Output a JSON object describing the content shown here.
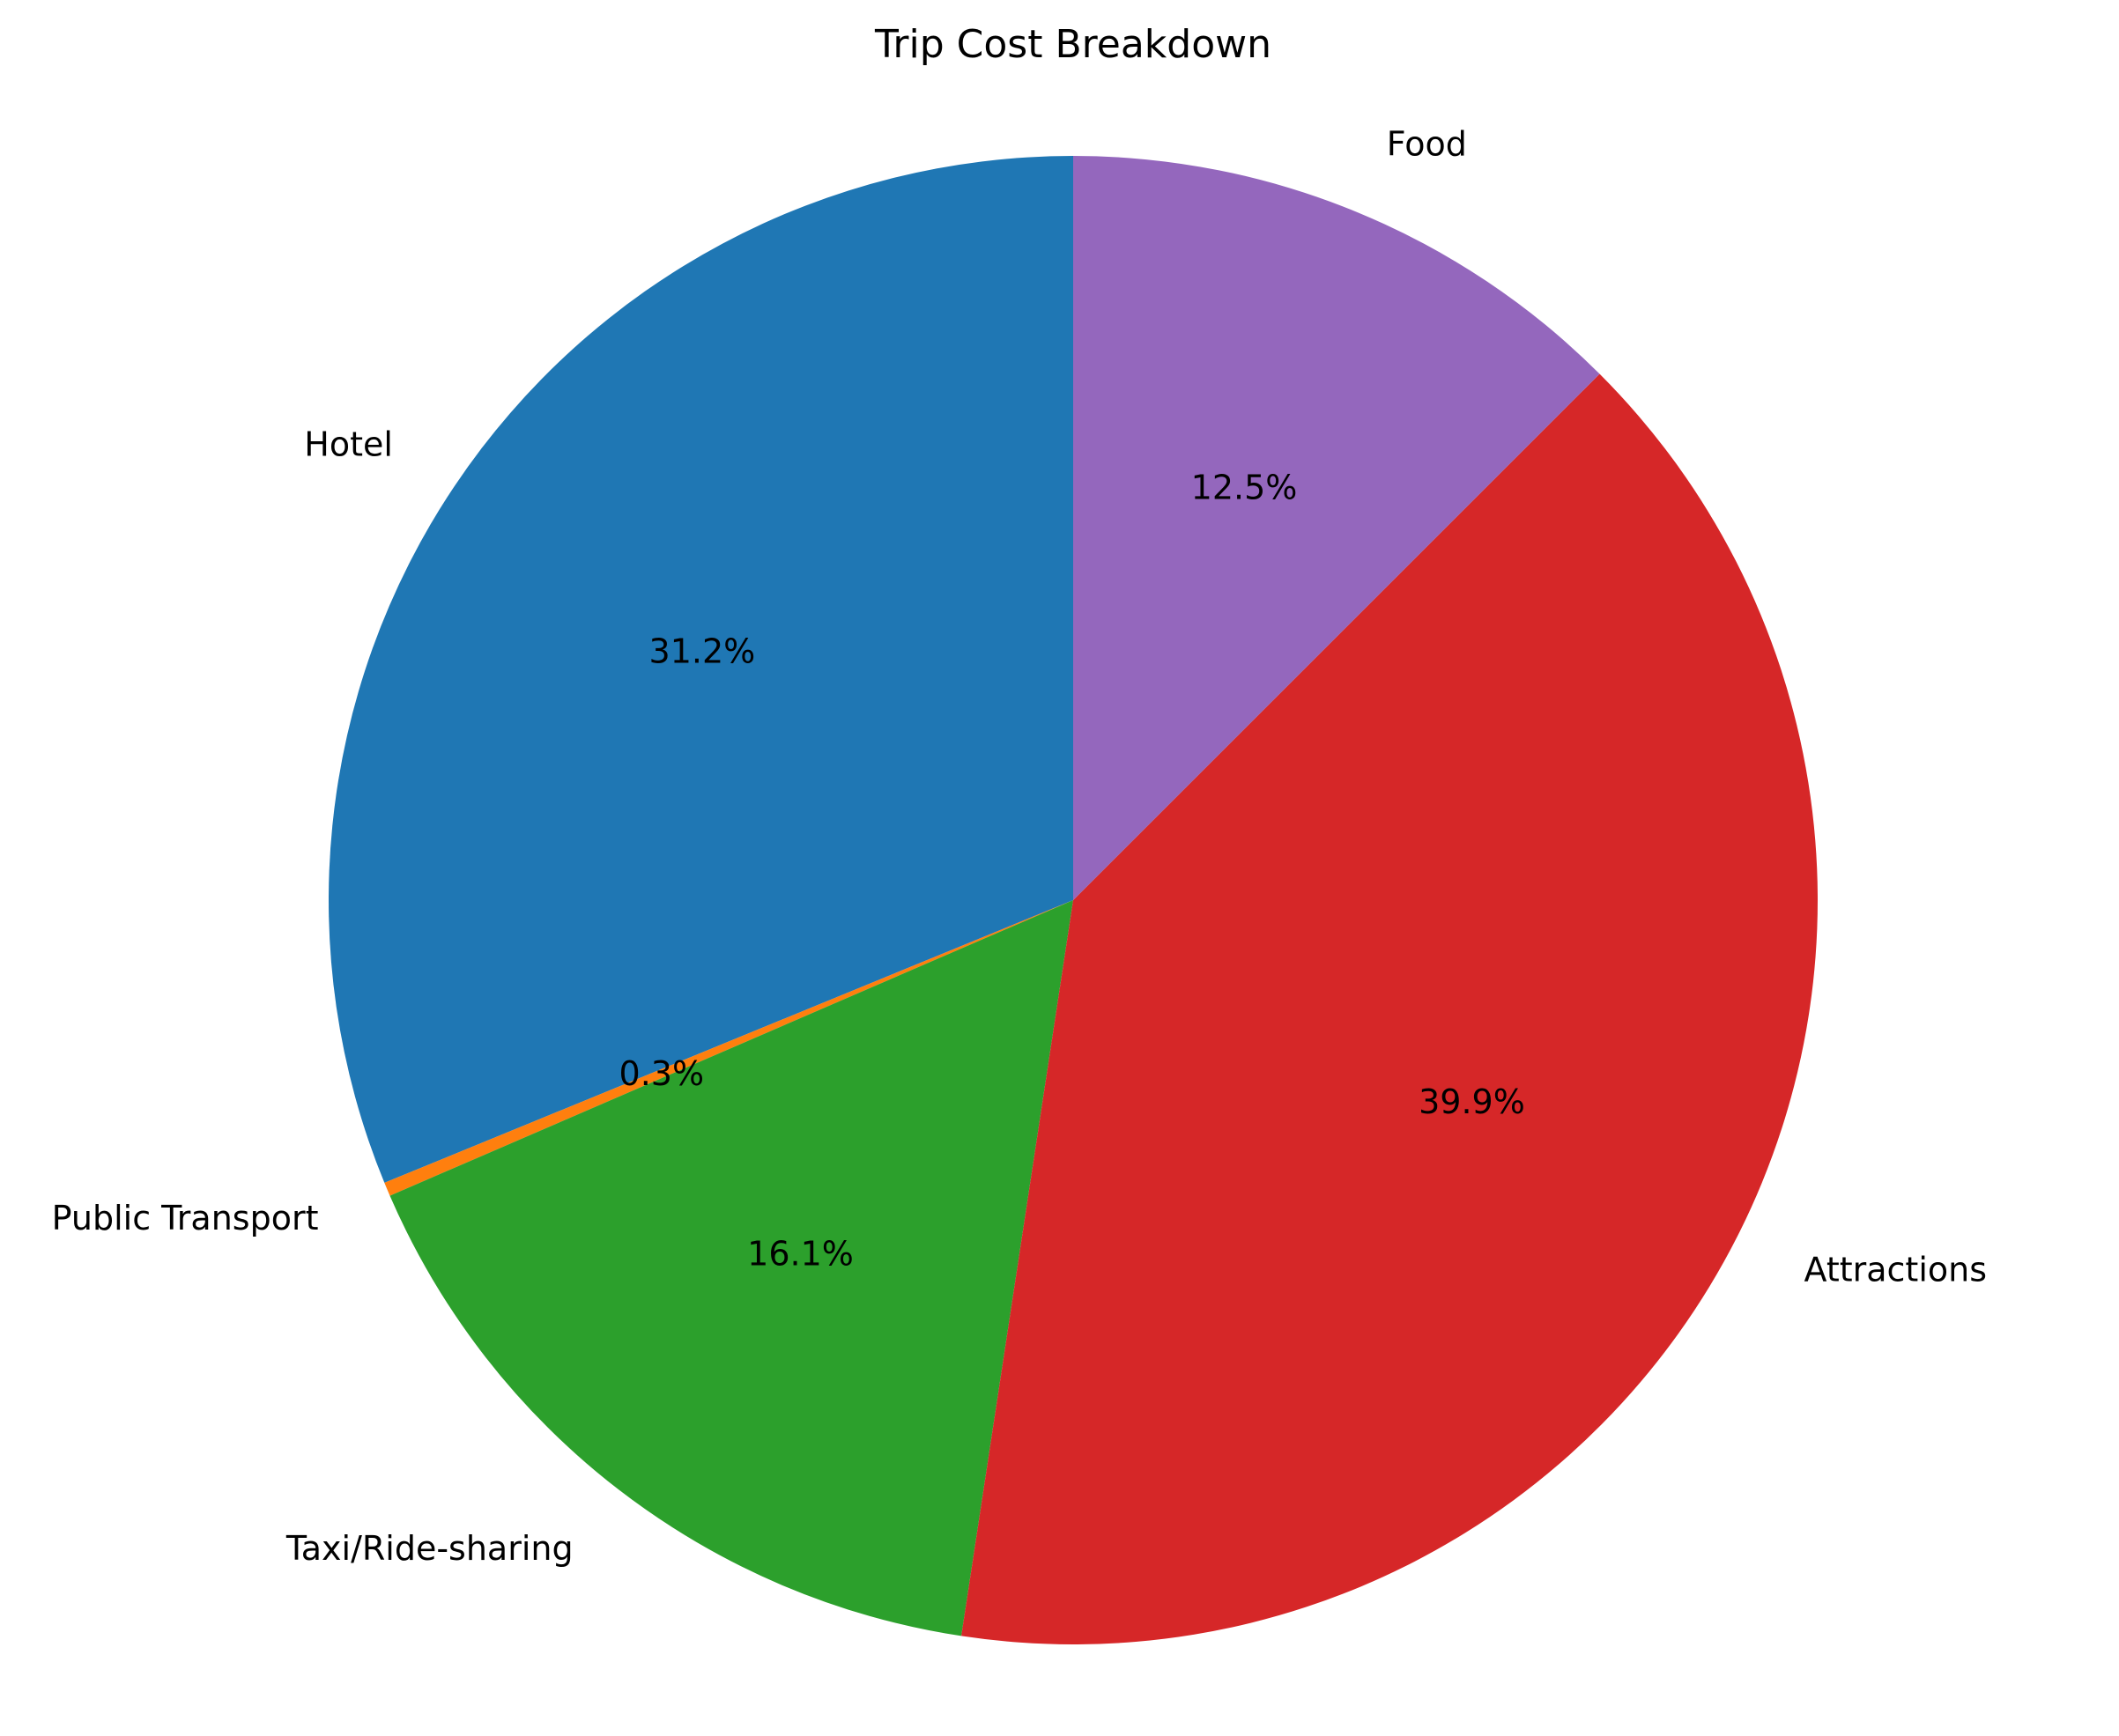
{
  "chart_data": {
    "type": "pie",
    "title": "Trip Cost Breakdown",
    "start_angle_deg": 90,
    "direction": "counterclockwise",
    "slices": [
      {
        "label": "Hotel",
        "value": 31.2,
        "pct_label": "31.2%",
        "color": "#1f77b4"
      },
      {
        "label": "Public Transport",
        "value": 0.3,
        "pct_label": "0.3%",
        "color": "#ff7f0e"
      },
      {
        "label": "Taxi/Ride-sharing",
        "value": 16.1,
        "pct_label": "16.1%",
        "color": "#2ca02c"
      },
      {
        "label": "Attractions",
        "value": 39.9,
        "pct_label": "39.9%",
        "color": "#d62728"
      },
      {
        "label": "Food",
        "value": 12.5,
        "pct_label": "12.5%",
        "color": "#9467bd"
      }
    ]
  }
}
